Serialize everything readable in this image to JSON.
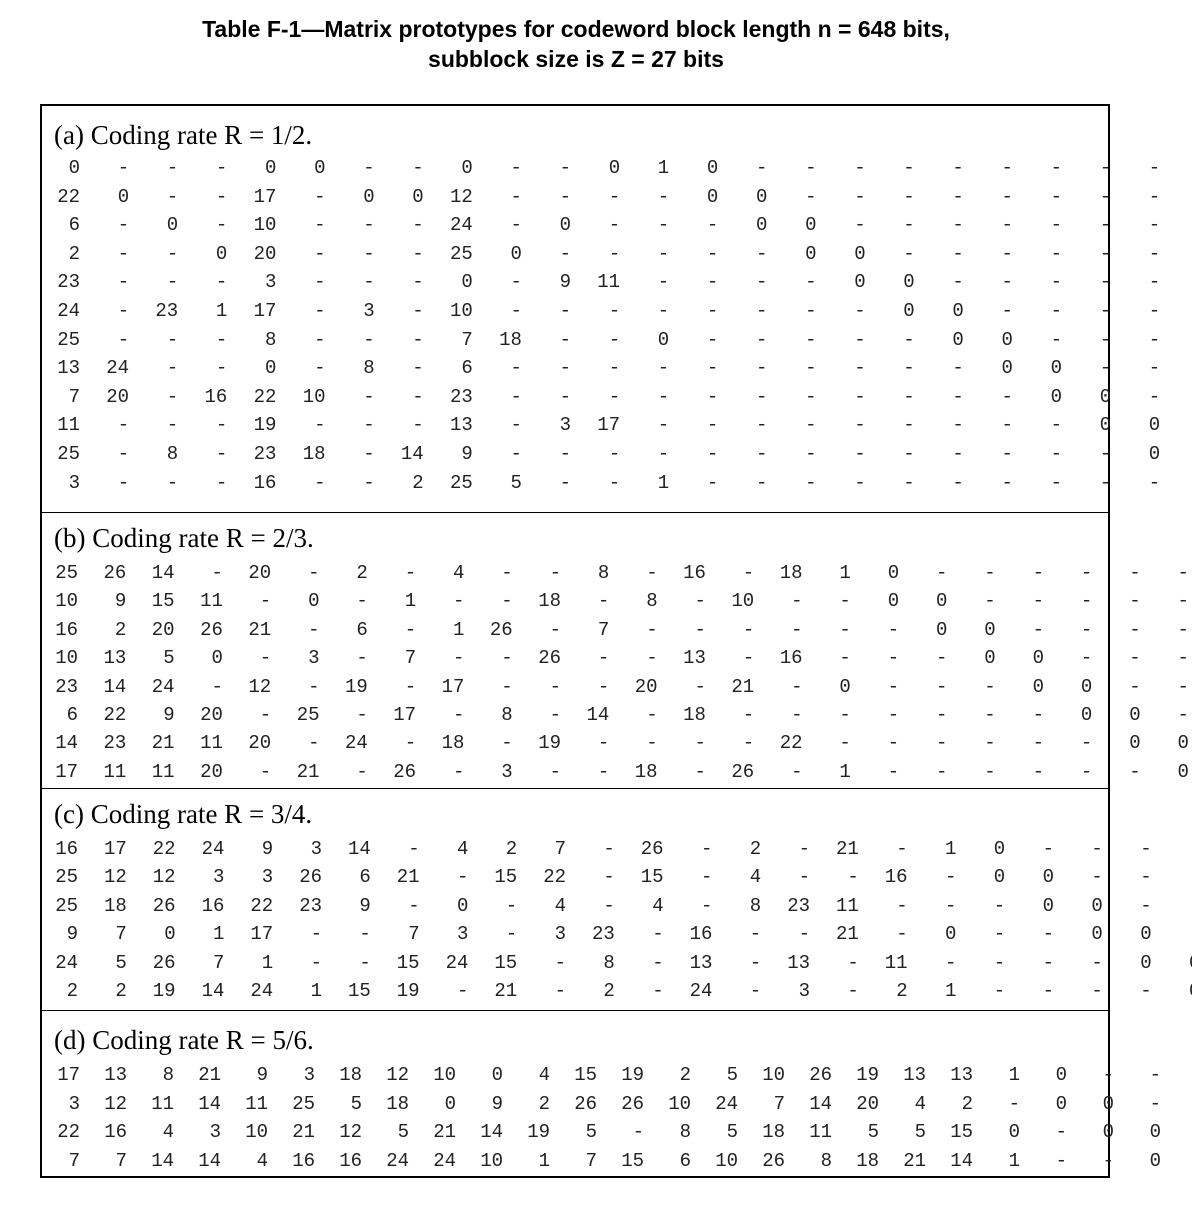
{
  "title": {
    "line1": "Table F-1—Matrix prototypes for codeword block length n = 648 bits,",
    "line2": "subblock size is Z = 27 bits"
  },
  "sections": [
    {
      "label": "(a) Coding rate R = 1/2.",
      "rows": [
        [
          "0",
          "-",
          "-",
          "-",
          "0",
          "0",
          "-",
          "-",
          "0",
          "-",
          "-",
          "0",
          "1",
          "0",
          "-",
          "-",
          "-",
          "-",
          "-",
          "-",
          "-",
          "-",
          "-",
          "-"
        ],
        [
          "22",
          "0",
          "-",
          "-",
          "17",
          "-",
          "0",
          "0",
          "12",
          "-",
          "-",
          "-",
          "-",
          "0",
          "0",
          "-",
          "-",
          "-",
          "-",
          "-",
          "-",
          "-",
          "-",
          "-"
        ],
        [
          "6",
          "-",
          "0",
          "-",
          "10",
          "-",
          "-",
          "-",
          "24",
          "-",
          "0",
          "-",
          "-",
          "-",
          "0",
          "0",
          "-",
          "-",
          "-",
          "-",
          "-",
          "-",
          "-",
          "-"
        ],
        [
          "2",
          "-",
          "-",
          "0",
          "20",
          "-",
          "-",
          "-",
          "25",
          "0",
          "-",
          "-",
          "-",
          "-",
          "-",
          "0",
          "0",
          "-",
          "-",
          "-",
          "-",
          "-",
          "-",
          "-"
        ],
        [
          "23",
          "-",
          "-",
          "-",
          "3",
          "-",
          "-",
          "-",
          "0",
          "-",
          "9",
          "11",
          "-",
          "-",
          "-",
          "-",
          "0",
          "0",
          "-",
          "-",
          "-",
          "-",
          "-",
          "-"
        ],
        [
          "24",
          "-",
          "23",
          "1",
          "17",
          "-",
          "3",
          "-",
          "10",
          "-",
          "-",
          "-",
          "-",
          "-",
          "-",
          "-",
          "-",
          "0",
          "0",
          "-",
          "-",
          "-",
          "-",
          "-"
        ],
        [
          "25",
          "-",
          "-",
          "-",
          "8",
          "-",
          "-",
          "-",
          "7",
          "18",
          "-",
          "-",
          "0",
          "-",
          "-",
          "-",
          "-",
          "-",
          "0",
          "0",
          "-",
          "-",
          "-",
          "-"
        ],
        [
          "13",
          "24",
          "-",
          "-",
          "0",
          "-",
          "8",
          "-",
          "6",
          "-",
          "-",
          "-",
          "-",
          "-",
          "-",
          "-",
          "-",
          "-",
          "-",
          "0",
          "0",
          "-",
          "-",
          "-"
        ],
        [
          "7",
          "20",
          "-",
          "16",
          "22",
          "10",
          "-",
          "-",
          "23",
          "-",
          "-",
          "-",
          "-",
          "-",
          "-",
          "-",
          "-",
          "-",
          "-",
          "-",
          "0",
          "0",
          "-",
          "-"
        ],
        [
          "11",
          "-",
          "-",
          "-",
          "19",
          "-",
          "-",
          "-",
          "13",
          "-",
          "3",
          "17",
          "-",
          "-",
          "-",
          "-",
          "-",
          "-",
          "-",
          "-",
          "-",
          "0",
          "0",
          "-"
        ],
        [
          "25",
          "-",
          "8",
          "-",
          "23",
          "18",
          "-",
          "14",
          "9",
          "-",
          "-",
          "-",
          "-",
          "-",
          "-",
          "-",
          "-",
          "-",
          "-",
          "-",
          "-",
          "-",
          "0",
          "0"
        ],
        [
          "3",
          "-",
          "-",
          "-",
          "16",
          "-",
          "-",
          "2",
          "25",
          "5",
          "-",
          "-",
          "1",
          "-",
          "-",
          "-",
          "-",
          "-",
          "-",
          "-",
          "-",
          "-",
          "-",
          "0"
        ]
      ]
    },
    {
      "label": "(b) Coding rate R = 2/3.",
      "rows": [
        [
          "25",
          "26",
          "14",
          "-",
          "20",
          "-",
          "2",
          "-",
          "4",
          "-",
          "-",
          "8",
          "-",
          "16",
          "-",
          "18",
          "1",
          "0",
          "-",
          "-",
          "-",
          "-",
          "-",
          "-"
        ],
        [
          "10",
          "9",
          "15",
          "11",
          "-",
          "0",
          "-",
          "1",
          "-",
          "-",
          "18",
          "-",
          "8",
          "-",
          "10",
          "-",
          "-",
          "0",
          "0",
          "-",
          "-",
          "-",
          "-",
          "-"
        ],
        [
          "16",
          "2",
          "20",
          "26",
          "21",
          "-",
          "6",
          "-",
          "1",
          "26",
          "-",
          "7",
          "-",
          "-",
          "-",
          "-",
          "-",
          "-",
          "0",
          "0",
          "-",
          "-",
          "-",
          "-"
        ],
        [
          "10",
          "13",
          "5",
          "0",
          "-",
          "3",
          "-",
          "7",
          "-",
          "-",
          "26",
          "-",
          "-",
          "13",
          "-",
          "16",
          "-",
          "-",
          "-",
          "0",
          "0",
          "-",
          "-",
          "-"
        ],
        [
          "23",
          "14",
          "24",
          "-",
          "12",
          "-",
          "19",
          "-",
          "17",
          "-",
          "-",
          "-",
          "20",
          "-",
          "21",
          "-",
          "0",
          "-",
          "-",
          "-",
          "0",
          "0",
          "-",
          "-"
        ],
        [
          "6",
          "22",
          "9",
          "20",
          "-",
          "25",
          "-",
          "17",
          "-",
          "8",
          "-",
          "14",
          "-",
          "18",
          "-",
          "-",
          "-",
          "-",
          "-",
          "-",
          "-",
          "0",
          "0",
          "-"
        ],
        [
          "14",
          "23",
          "21",
          "11",
          "20",
          "-",
          "24",
          "-",
          "18",
          "-",
          "19",
          "-",
          "-",
          "-",
          "-",
          "22",
          "-",
          "-",
          "-",
          "-",
          "-",
          "-",
          "0",
          "0"
        ],
        [
          "17",
          "11",
          "11",
          "20",
          "-",
          "21",
          "-",
          "26",
          "-",
          "3",
          "-",
          "-",
          "18",
          "-",
          "26",
          "-",
          "1",
          "-",
          "-",
          "-",
          "-",
          "-",
          "-",
          "0"
        ]
      ]
    },
    {
      "label": "(c) Coding rate R = 3/4.",
      "rows": [
        [
          "16",
          "17",
          "22",
          "24",
          "9",
          "3",
          "14",
          "-",
          "4",
          "2",
          "7",
          "-",
          "26",
          "-",
          "2",
          "-",
          "21",
          "-",
          "1",
          "0",
          "-",
          "-",
          "-",
          "-"
        ],
        [
          "25",
          "12",
          "12",
          "3",
          "3",
          "26",
          "6",
          "21",
          "-",
          "15",
          "22",
          "-",
          "15",
          "-",
          "4",
          "-",
          "-",
          "16",
          "-",
          "0",
          "0",
          "-",
          "-",
          "-"
        ],
        [
          "25",
          "18",
          "26",
          "16",
          "22",
          "23",
          "9",
          "-",
          "0",
          "-",
          "4",
          "-",
          "4",
          "-",
          "8",
          "23",
          "11",
          "-",
          "-",
          "-",
          "0",
          "0",
          "-",
          "-"
        ],
        [
          "9",
          "7",
          "0",
          "1",
          "17",
          "-",
          "-",
          "7",
          "3",
          "-",
          "3",
          "23",
          "-",
          "16",
          "-",
          "-",
          "21",
          "-",
          "0",
          "-",
          "-",
          "0",
          "0",
          "-"
        ],
        [
          "24",
          "5",
          "26",
          "7",
          "1",
          "-",
          "-",
          "15",
          "24",
          "15",
          "-",
          "8",
          "-",
          "13",
          "-",
          "13",
          "-",
          "11",
          "-",
          "-",
          "-",
          "-",
          "0",
          "0"
        ],
        [
          "2",
          "2",
          "19",
          "14",
          "24",
          "1",
          "15",
          "19",
          "-",
          "21",
          "-",
          "2",
          "-",
          "24",
          "-",
          "3",
          "-",
          "2",
          "1",
          "-",
          "-",
          "-",
          "-",
          "0"
        ]
      ]
    },
    {
      "label": "(d) Coding rate R = 5/6.",
      "rows": [
        [
          "17",
          "13",
          "8",
          "21",
          "9",
          "3",
          "18",
          "12",
          "10",
          "0",
          "4",
          "15",
          "19",
          "2",
          "5",
          "10",
          "26",
          "19",
          "13",
          "13",
          "1",
          "0",
          "-",
          "-"
        ],
        [
          "3",
          "12",
          "11",
          "14",
          "11",
          "25",
          "5",
          "18",
          "0",
          "9",
          "2",
          "26",
          "26",
          "10",
          "24",
          "7",
          "14",
          "20",
          "4",
          "2",
          "-",
          "0",
          "0",
          "-"
        ],
        [
          "22",
          "16",
          "4",
          "3",
          "10",
          "21",
          "12",
          "5",
          "21",
          "14",
          "19",
          "5",
          "-",
          "8",
          "5",
          "18",
          "11",
          "5",
          "5",
          "15",
          "0",
          "-",
          "0",
          "0"
        ],
        [
          "7",
          "7",
          "14",
          "14",
          "4",
          "16",
          "16",
          "24",
          "24",
          "10",
          "1",
          "7",
          "15",
          "6",
          "10",
          "26",
          "8",
          "18",
          "21",
          "14",
          "1",
          "-",
          "-",
          "0"
        ]
      ]
    }
  ]
}
